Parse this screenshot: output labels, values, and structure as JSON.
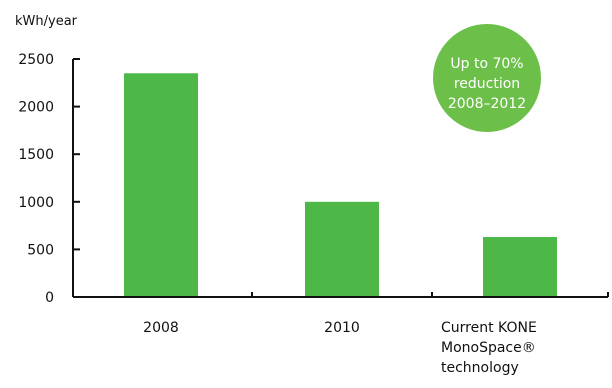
{
  "chart_data": {
    "type": "bar",
    "ylabel": "kWh/year",
    "ylim": [
      0,
      2500
    ],
    "yticks": [
      0,
      500,
      1000,
      1500,
      2000,
      2500
    ],
    "categories": [
      "2008",
      "2010",
      "Current KONE MonoSpace® technology"
    ],
    "category_label_lines": [
      [
        "2008"
      ],
      [
        "2010"
      ],
      [
        "Current KONE",
        "MonoSpace®",
        "technology"
      ]
    ],
    "values": [
      2350,
      1000,
      630
    ],
    "bar_color": "#4db848",
    "annotation": {
      "lines": [
        "Up to 70%",
        "reduction",
        "2008–2012"
      ],
      "color": "#6cc04a",
      "text_color": "#ffffff"
    }
  }
}
